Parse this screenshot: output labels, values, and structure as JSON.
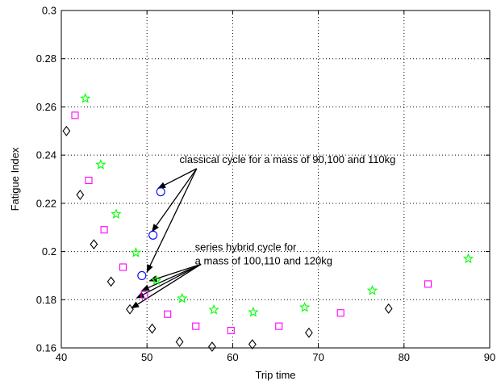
{
  "chart_data": {
    "type": "scatter",
    "xlabel": "Trip time",
    "ylabel": "Fatigue Index",
    "xlim": [
      40,
      90
    ],
    "ylim": [
      0.16,
      0.3
    ],
    "xticks": [
      "40",
      "50",
      "60",
      "70",
      "80",
      "90"
    ],
    "yticks": [
      "0.16",
      "0.18",
      "0.2",
      "0.22",
      "0.24",
      "0.26",
      "0.28",
      "0.3"
    ],
    "grid": true,
    "series": [
      {
        "marker": "diamond",
        "color": "#000000",
        "points": [
          [
            40.6,
            0.25
          ],
          [
            42.2,
            0.2235
          ],
          [
            43.8,
            0.203
          ],
          [
            45.8,
            0.1875
          ],
          [
            48.0,
            0.176
          ],
          [
            50.6,
            0.168
          ],
          [
            53.8,
            0.1625
          ],
          [
            57.6,
            0.1605
          ],
          [
            62.3,
            0.1615
          ],
          [
            68.9,
            0.1663
          ],
          [
            78.2,
            0.1763
          ]
        ]
      },
      {
        "marker": "square",
        "color": "#ff00ff",
        "points": [
          [
            41.6,
            0.2565
          ],
          [
            43.2,
            0.2295
          ],
          [
            45.0,
            0.209
          ],
          [
            47.2,
            0.1935
          ],
          [
            49.7,
            0.182
          ],
          [
            52.4,
            0.174
          ],
          [
            55.7,
            0.169
          ],
          [
            59.8,
            0.1672
          ],
          [
            65.4,
            0.169
          ],
          [
            72.6,
            0.1745
          ],
          [
            82.8,
            0.1865
          ]
        ]
      },
      {
        "marker": "star",
        "color": "#00ff00",
        "points": [
          [
            42.8,
            0.2635
          ],
          [
            44.6,
            0.236
          ],
          [
            46.4,
            0.2155
          ],
          [
            48.7,
            0.1995
          ],
          [
            51.1,
            0.188
          ],
          [
            54.1,
            0.1805
          ],
          [
            57.8,
            0.1758
          ],
          [
            62.4,
            0.1748
          ],
          [
            68.4,
            0.1768
          ],
          [
            76.3,
            0.1838
          ],
          [
            87.5,
            0.197
          ]
        ]
      },
      {
        "marker": "circle",
        "color": "#0000ff",
        "points": [
          [
            49.4,
            0.19
          ],
          [
            50.7,
            0.2068
          ],
          [
            51.6,
            0.2248
          ]
        ]
      }
    ],
    "annotations": [
      {
        "lines": [
          "classical cycle for a mass of 90,100 and 110kg"
        ],
        "text_anchor": [
          53.8,
          0.2367
        ],
        "arrow_source": [
          55.8,
          0.2344
        ],
        "arrow_targets": [
          [
            50.0,
            0.1915
          ],
          [
            50.6,
            0.2083
          ],
          [
            51.3,
            0.2262
          ]
        ]
      },
      {
        "lines": [
          "series hybrid cycle for",
          "a mass of 100,110 and 120kg"
        ],
        "text_anchor": [
          55.6,
          0.2004
        ],
        "arrow_source": [
          56.3,
          0.1947
        ],
        "arrow_targets": [
          [
            48.2,
            0.1765
          ],
          [
            48.8,
            0.1807
          ],
          [
            49.4,
            0.1838
          ],
          [
            50.3,
            0.1878
          ]
        ]
      }
    ]
  }
}
